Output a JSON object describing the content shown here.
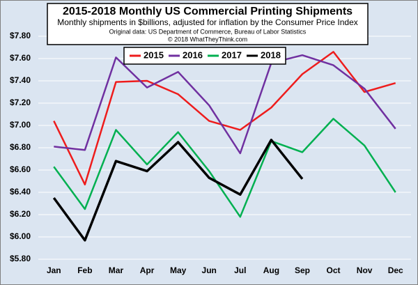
{
  "chart_data": {
    "type": "line",
    "title": "2015-2018 Monthly US Commercial Printing Shipments",
    "subtitle": "Monthly shipments in $billions, adjusted for inflation by the Consumer Price Index",
    "source": "Original data: US Department of Commerce, Bureau of Labor Statistics",
    "copyright": "© 2018 WhatTheyThink.com",
    "categories": [
      "Jan",
      "Feb",
      "Mar",
      "Apr",
      "May",
      "Jun",
      "Jul",
      "Aug",
      "Sep",
      "Oct",
      "Nov",
      "Dec"
    ],
    "series": [
      {
        "name": "2015",
        "color": "#ee1c1c",
        "values": [
          7.04,
          6.47,
          7.39,
          7.4,
          7.28,
          7.04,
          6.96,
          7.16,
          7.46,
          7.66,
          7.3,
          7.38
        ]
      },
      {
        "name": "2016",
        "color": "#7030a0",
        "values": [
          6.81,
          6.78,
          7.61,
          7.34,
          7.48,
          7.18,
          6.75,
          7.56,
          7.63,
          7.54,
          7.33,
          6.97
        ]
      },
      {
        "name": "2017",
        "color": "#00b050",
        "values": [
          6.63,
          6.25,
          6.96,
          6.65,
          6.94,
          6.59,
          6.18,
          6.86,
          6.76,
          7.06,
          6.82,
          6.4
        ]
      },
      {
        "name": "2018",
        "color": "#000000",
        "values": [
          6.35,
          5.97,
          6.68,
          6.59,
          6.85,
          6.53,
          6.38,
          6.87,
          6.52,
          null,
          null,
          null
        ]
      }
    ],
    "ylim": [
      5.8,
      7.8
    ],
    "yticks": [
      {
        "value": 5.8,
        "label": "$5.80"
      },
      {
        "value": 6.0,
        "label": "$6.00"
      },
      {
        "value": 6.2,
        "label": "$6.20"
      },
      {
        "value": 6.4,
        "label": "$6.40"
      },
      {
        "value": 6.6,
        "label": "$6.60"
      },
      {
        "value": 6.8,
        "label": "$6.80"
      },
      {
        "value": 7.0,
        "label": "$7.00"
      },
      {
        "value": 7.2,
        "label": "$7.20"
      },
      {
        "value": 7.4,
        "label": "$7.40"
      },
      {
        "value": 7.6,
        "label": "$7.60"
      },
      {
        "value": 7.8,
        "label": "$7.80"
      }
    ],
    "grid": true
  }
}
